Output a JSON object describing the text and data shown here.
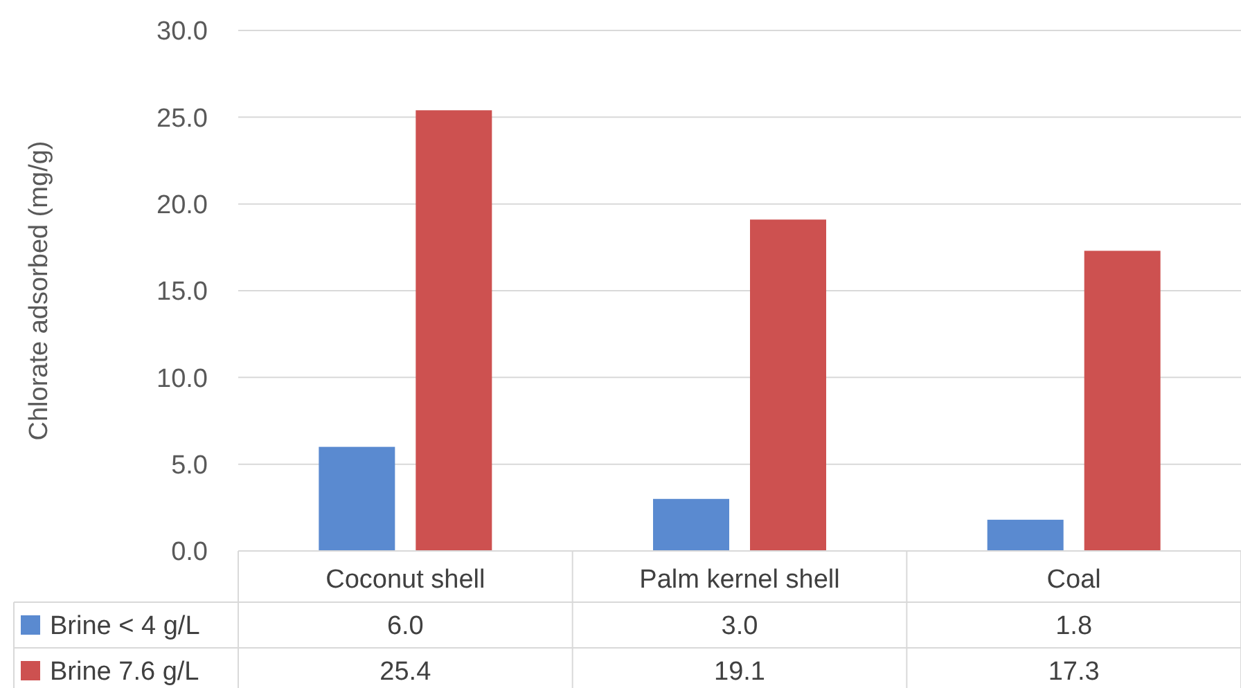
{
  "chart_data": {
    "type": "bar",
    "ylabel": "Chlorate adsorbed (mg/g)",
    "categories": [
      "Coconut shell",
      "Palm kernel shell",
      "Coal"
    ],
    "series": [
      {
        "name": "Brine < 4 g/L",
        "color": "#5a8ad0",
        "values": [
          6.0,
          3.0,
          1.8
        ],
        "value_labels": [
          "6.0",
          "3.0",
          "1.8"
        ]
      },
      {
        "name": "Brine 7.6 g/L",
        "color": "#cd5150",
        "values": [
          25.4,
          19.1,
          17.3
        ],
        "value_labels": [
          "25.4",
          "19.1",
          "17.3"
        ]
      }
    ],
    "ylim": [
      0,
      30
    ],
    "yticks": [
      {
        "value": 0,
        "label": "0.0"
      },
      {
        "value": 5,
        "label": "5.0"
      },
      {
        "value": 10,
        "label": "10.0"
      },
      {
        "value": 15,
        "label": "15.0"
      },
      {
        "value": 20,
        "label": "20.0"
      },
      {
        "value": 25,
        "label": "25.0"
      },
      {
        "value": 30,
        "label": "30.0"
      }
    ],
    "grid": true,
    "legend": "bottom"
  }
}
